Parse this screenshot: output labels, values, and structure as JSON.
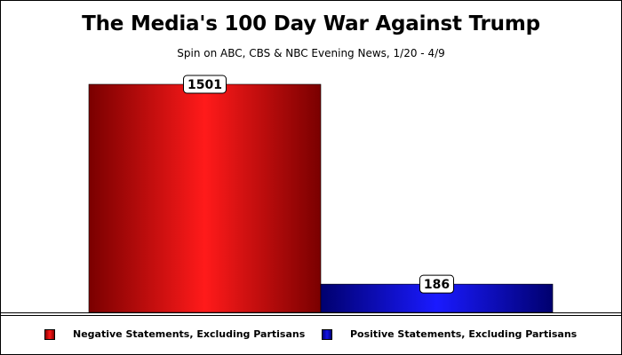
{
  "chart_data": {
    "type": "bar",
    "title": "The Media's 100 Day War Against Trump",
    "subtitle": "Spin on ABC, CBS & NBC Evening News,  1/20 - 4/9",
    "categories": [
      "Negative Statements, Excluding Partisans",
      "Positive Statements, Excluding Partisans"
    ],
    "values": [
      1501,
      186
    ],
    "data_labels": [
      "1501",
      "186"
    ],
    "colors": [
      "#e00000",
      "#1010c8"
    ],
    "ylim": [
      0,
      1501
    ],
    "grid": false,
    "legend_position": "bottom"
  }
}
